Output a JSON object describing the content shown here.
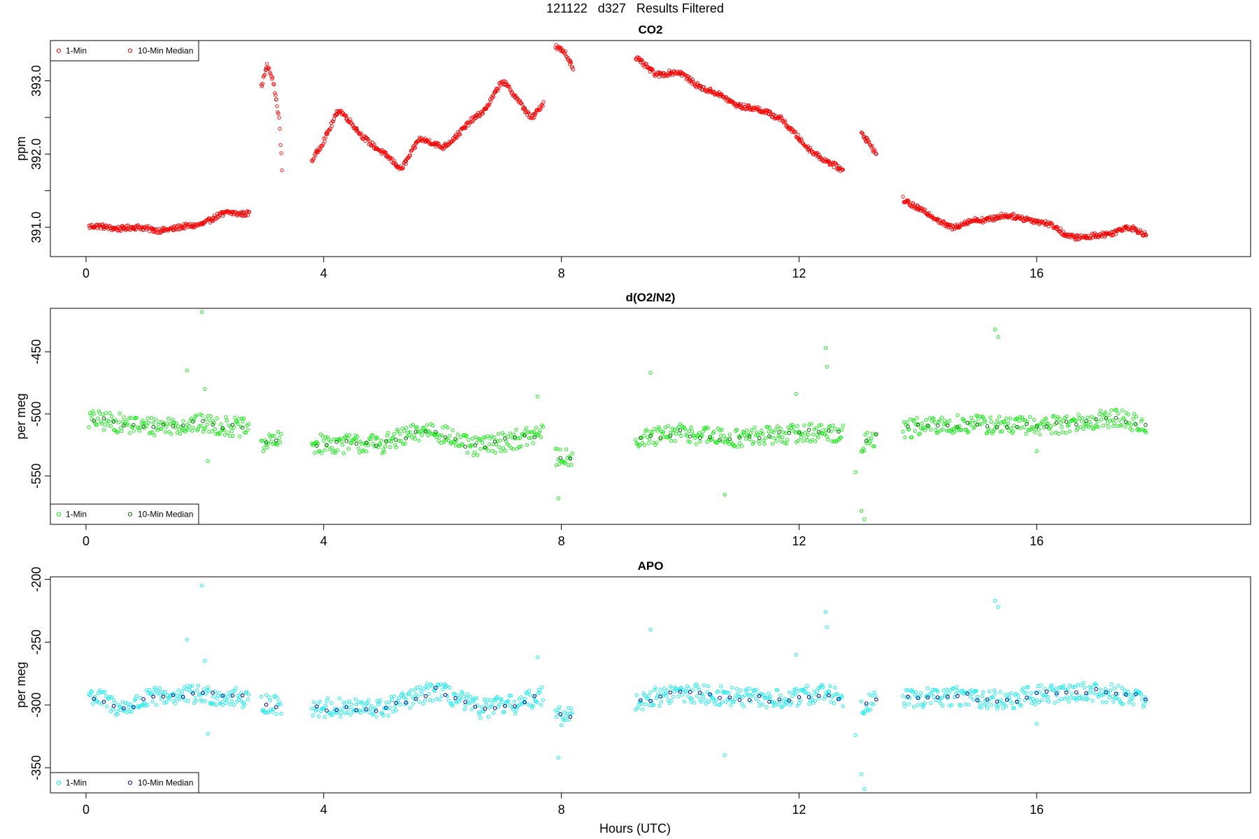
{
  "page_title": "121122   d327   Results Filtered",
  "x_axis_label": "Hours (UTC)",
  "chart_data": [
    {
      "id": "co2",
      "type": "scatter",
      "title": "CO2",
      "xlabel": "",
      "ylabel": "ppm",
      "xlim": [
        -0.6,
        19.6
      ],
      "ylim": [
        390.6,
        393.55
      ],
      "xticks": [
        0,
        4,
        8,
        12,
        16
      ],
      "xtick_labels": [
        "0",
        "4",
        "8",
        "12",
        "16"
      ],
      "yticks": [
        391.0,
        391.5,
        392.0,
        392.5,
        393.0
      ],
      "ytick_labels": [
        "391.0",
        "",
        "392.0",
        "",
        "393.0"
      ],
      "legend": {
        "position": "top-left",
        "entries": [
          "1-Min",
          "10-Min Median"
        ]
      },
      "colors": {
        "one_min": "#ff0000",
        "median": "#cc0000"
      },
      "segments": [
        {
          "x0": 0.05,
          "x1": 2.75,
          "points": [
            [
              0,
              391.0
            ],
            [
              0.5,
              391.0
            ],
            [
              1.0,
              390.98
            ],
            [
              1.5,
              390.97
            ],
            [
              2.0,
              391.07
            ],
            [
              2.4,
              391.2
            ],
            [
              2.75,
              391.2
            ]
          ]
        },
        {
          "x0": 2.95,
          "x1": 3.3,
          "points": [
            [
              2.95,
              392.9
            ],
            [
              3.05,
              393.2
            ],
            [
              3.15,
              393.0
            ],
            [
              3.25,
              392.5
            ],
            [
              3.3,
              391.8
            ]
          ]
        },
        {
          "x0": 3.8,
          "x1": 7.7,
          "points": [
            [
              3.8,
              391.9
            ],
            [
              4.0,
              392.2
            ],
            [
              4.25,
              392.6
            ],
            [
              4.6,
              392.3
            ],
            [
              5.0,
              392.0
            ],
            [
              5.3,
              391.8
            ],
            [
              5.6,
              392.2
            ],
            [
              6.0,
              392.1
            ],
            [
              6.3,
              392.3
            ],
            [
              6.7,
              392.6
            ],
            [
              7.0,
              393.0
            ],
            [
              7.3,
              392.7
            ],
            [
              7.5,
              392.5
            ],
            [
              7.7,
              392.7
            ]
          ]
        },
        {
          "x0": 7.9,
          "x1": 8.2,
          "points": [
            [
              7.9,
              393.45
            ],
            [
              8.05,
              393.4
            ],
            [
              8.2,
              393.2
            ]
          ]
        },
        {
          "x0": 9.25,
          "x1": 12.75,
          "points": [
            [
              9.25,
              393.3
            ],
            [
              9.6,
              393.1
            ],
            [
              10.0,
              393.1
            ],
            [
              10.4,
              392.9
            ],
            [
              10.9,
              392.7
            ],
            [
              11.3,
              392.6
            ],
            [
              11.7,
              392.5
            ],
            [
              12.1,
              392.1
            ],
            [
              12.5,
              391.9
            ],
            [
              12.75,
              391.75
            ]
          ]
        },
        {
          "x0": 13.05,
          "x1": 13.3,
          "points": [
            [
              13.05,
              392.3
            ],
            [
              13.15,
              392.2
            ],
            [
              13.3,
              392.0
            ]
          ]
        },
        {
          "x0": 13.75,
          "x1": 17.85,
          "points": [
            [
              13.75,
              391.4
            ],
            [
              14.1,
              391.2
            ],
            [
              14.6,
              391.0
            ],
            [
              15.0,
              391.1
            ],
            [
              15.4,
              391.15
            ],
            [
              15.9,
              391.12
            ],
            [
              16.3,
              391.0
            ],
            [
              16.5,
              390.9
            ],
            [
              16.85,
              390.85
            ],
            [
              17.2,
              390.92
            ],
            [
              17.5,
              391.0
            ],
            [
              17.85,
              390.9
            ]
          ]
        }
      ]
    },
    {
      "id": "o2n2",
      "type": "scatter",
      "title": "d(O2/N2)",
      "xlabel": "",
      "ylabel": "per meg",
      "xlim": [
        -0.6,
        19.6
      ],
      "ylim": [
        -589,
        -415
      ],
      "xticks": [
        0,
        4,
        8,
        12,
        16
      ],
      "xtick_labels": [
        "0",
        "4",
        "8",
        "12",
        "16"
      ],
      "yticks": [
        -450,
        -500,
        -550
      ],
      "ytick_labels": [
        "-450",
        "-500",
        "-550"
      ],
      "legend": {
        "position": "bottom-left",
        "entries": [
          "1-Min",
          "10-Min Median"
        ]
      },
      "colors": {
        "one_min": "#00ee00",
        "median": "#006400"
      },
      "segments": [
        {
          "x0": 0.05,
          "x1": 2.75,
          "points": [
            [
              0,
              -504
            ],
            [
              1.0,
              -510
            ],
            [
              2.0,
              -508
            ],
            [
              2.75,
              -512
            ]
          ]
        },
        {
          "x0": 2.95,
          "x1": 3.3,
          "points": [
            [
              2.95,
              -523
            ],
            [
              3.3,
              -522
            ]
          ]
        },
        {
          "x0": 3.8,
          "x1": 7.7,
          "points": [
            [
              3.8,
              -524
            ],
            [
              5.0,
              -524
            ],
            [
              5.8,
              -512
            ],
            [
              6.5,
              -527
            ],
            [
              7.5,
              -518
            ],
            [
              7.7,
              -515
            ]
          ]
        },
        {
          "x0": 7.9,
          "x1": 8.2,
          "points": [
            [
              7.9,
              -535
            ],
            [
              8.2,
              -534
            ]
          ]
        },
        {
          "x0": 9.25,
          "x1": 12.75,
          "points": [
            [
              9.25,
              -522
            ],
            [
              10.0,
              -515
            ],
            [
              10.8,
              -520
            ],
            [
              11.6,
              -517
            ],
            [
              12.2,
              -515
            ],
            [
              12.75,
              -515
            ]
          ]
        },
        {
          "x0": 13.05,
          "x1": 13.3,
          "points": [
            [
              13.05,
              -525
            ],
            [
              13.3,
              -518
            ]
          ]
        },
        {
          "x0": 13.75,
          "x1": 17.85,
          "points": [
            [
              13.75,
              -512
            ],
            [
              14.8,
              -508
            ],
            [
              15.8,
              -510
            ],
            [
              16.8,
              -507
            ],
            [
              17.3,
              -503
            ],
            [
              17.85,
              -510
            ]
          ]
        }
      ],
      "outliers": [
        [
          1.7,
          -465
        ],
        [
          1.95,
          -418
        ],
        [
          2.0,
          -480
        ],
        [
          2.05,
          -538
        ],
        [
          7.6,
          -486
        ],
        [
          7.95,
          -568
        ],
        [
          9.5,
          -467
        ],
        [
          10.75,
          -565
        ],
        [
          11.95,
          -484
        ],
        [
          12.45,
          -447
        ],
        [
          12.47,
          -462
        ],
        [
          12.95,
          -547
        ],
        [
          13.05,
          -578
        ],
        [
          13.1,
          -585
        ],
        [
          15.3,
          -432
        ],
        [
          15.35,
          -438
        ],
        [
          16.0,
          -530
        ]
      ]
    },
    {
      "id": "apo",
      "type": "scatter",
      "title": "APO",
      "xlabel": "Hours (UTC)",
      "ylabel": "per meg",
      "xlim": [
        -0.6,
        19.6
      ],
      "ylim": [
        -370,
        -198
      ],
      "xticks": [
        0,
        4,
        8,
        12,
        16
      ],
      "xtick_labels": [
        "0",
        "4",
        "8",
        "12",
        "16"
      ],
      "yticks": [
        -200,
        -250,
        -300,
        -350
      ],
      "ytick_labels": [
        "-200",
        "-250",
        "-300",
        "-350"
      ],
      "legend": {
        "position": "bottom-left",
        "entries": [
          "1-Min",
          "10-Min Median"
        ]
      },
      "colors": {
        "one_min": "#00eeee",
        "median": "#00008b"
      },
      "segments": [
        {
          "x0": 0.05,
          "x1": 2.75,
          "points": [
            [
              0,
              -290
            ],
            [
              0.6,
              -303
            ],
            [
              1.2,
              -293
            ],
            [
              2.0,
              -292
            ],
            [
              2.75,
              -295
            ]
          ]
        },
        {
          "x0": 2.95,
          "x1": 3.3,
          "points": [
            [
              2.95,
              -298
            ],
            [
              3.3,
              -301
            ]
          ]
        },
        {
          "x0": 3.8,
          "x1": 7.7,
          "points": [
            [
              3.8,
              -302
            ],
            [
              5.0,
              -303
            ],
            [
              5.9,
              -288
            ],
            [
              6.6,
              -303
            ],
            [
              7.3,
              -299
            ],
            [
              7.7,
              -292
            ]
          ]
        },
        {
          "x0": 7.9,
          "x1": 8.2,
          "points": [
            [
              7.9,
              -309
            ],
            [
              8.2,
              -308
            ]
          ]
        },
        {
          "x0": 9.25,
          "x1": 12.75,
          "points": [
            [
              9.25,
              -297
            ],
            [
              10.0,
              -290
            ],
            [
              11.0,
              -294
            ],
            [
              11.8,
              -296
            ],
            [
              12.4,
              -290
            ],
            [
              12.75,
              -294
            ]
          ]
        },
        {
          "x0": 13.05,
          "x1": 13.3,
          "points": [
            [
              13.05,
              -300
            ],
            [
              13.3,
              -297
            ]
          ]
        },
        {
          "x0": 13.75,
          "x1": 17.85,
          "points": [
            [
              13.75,
              -295
            ],
            [
              14.8,
              -293
            ],
            [
              15.5,
              -297
            ],
            [
              16.0,
              -292
            ],
            [
              16.9,
              -289
            ],
            [
              17.85,
              -294
            ]
          ]
        }
      ],
      "outliers": [
        [
          1.7,
          -248
        ],
        [
          1.95,
          -205
        ],
        [
          2.0,
          -265
        ],
        [
          2.05,
          -323
        ],
        [
          7.6,
          -262
        ],
        [
          7.95,
          -342
        ],
        [
          9.5,
          -240
        ],
        [
          10.75,
          -340
        ],
        [
          11.95,
          -260
        ],
        [
          12.45,
          -226
        ],
        [
          12.47,
          -238
        ],
        [
          12.95,
          -324
        ],
        [
          13.05,
          -355
        ],
        [
          13.1,
          -367
        ],
        [
          15.3,
          -217
        ],
        [
          15.35,
          -222
        ],
        [
          16.0,
          -315
        ]
      ]
    }
  ]
}
